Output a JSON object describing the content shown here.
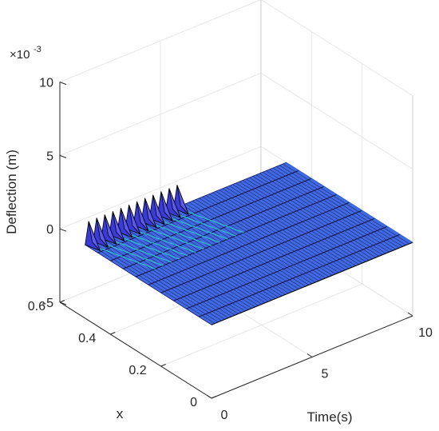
{
  "chart_data": {
    "type": "surface",
    "title": "",
    "xlabel": "Time(s)",
    "ylabel": "x",
    "zlabel": "Deflection (m)",
    "z_exponent_label": "×10",
    "z_exponent_power": "-3",
    "xlim": [
      0,
      10
    ],
    "ylim": [
      0,
      0.6
    ],
    "zlim": [
      -0.005,
      0.01
    ],
    "x_ticks": [
      {
        "value": 0,
        "label": "0"
      },
      {
        "value": 5,
        "label": "5"
      },
      {
        "value": 10,
        "label": "10"
      }
    ],
    "y_ticks": [
      {
        "value": 0,
        "label": "0"
      },
      {
        "value": 0.2,
        "label": "0.2"
      },
      {
        "value": 0.4,
        "label": "0.4"
      },
      {
        "value": 0.6,
        "label": "0.6"
      }
    ],
    "z_ticks": [
      {
        "value": -0.005,
        "label": "-5"
      },
      {
        "value": 0,
        "label": "0"
      },
      {
        "value": 0.005,
        "label": "5"
      },
      {
        "value": 0.01,
        "label": "10"
      }
    ],
    "grid": true,
    "surface": {
      "x_extent": [
        0,
        10
      ],
      "y_extent": [
        0,
        0.5
      ],
      "spike_times": [
        0,
        0.4,
        0.8,
        1.2,
        1.6,
        2.0,
        2.4,
        2.8,
        3.2,
        3.6,
        4.0,
        4.4
      ],
      "spike_peak": 0.0015,
      "rest_value": 0,
      "face_color": "#4169e1",
      "edge_color": "#000000",
      "spike_color": "#3a3ad8",
      "highlight_color": "#2fc0c8"
    },
    "colors": {
      "axis": "#262626",
      "grid": "#e6e6e6"
    }
  }
}
